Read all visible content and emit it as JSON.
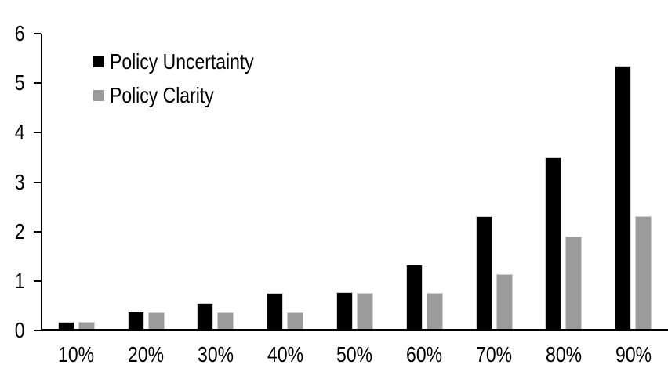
{
  "chart_data": {
    "type": "bar",
    "title": "",
    "categories": [
      "10%",
      "20%",
      "30%",
      "40%",
      "50%",
      "60%",
      "70%",
      "80%",
      "90%"
    ],
    "series": [
      {
        "name": "Policy Uncertainty",
        "color": "#000000",
        "values": [
          0.18,
          0.38,
          0.55,
          0.76,
          0.78,
          1.33,
          2.31,
          3.5,
          5.35
        ]
      },
      {
        "name": "Policy Clarity",
        "color": "#9b9b9b",
        "values": [
          0.18,
          0.37,
          0.37,
          0.37,
          0.76,
          0.76,
          1.14,
          1.9,
          2.31
        ]
      }
    ],
    "xlabel": "",
    "ylabel": "",
    "ylim": [
      0,
      6
    ],
    "yticks": [
      0,
      1,
      2,
      3,
      4,
      5,
      6
    ],
    "grid": false,
    "legend_position": "upper-left-inside"
  },
  "colors": {
    "background": "#ffffff",
    "axis": "#000000",
    "bar_border": "#d0d0d0",
    "text": "#000000"
  }
}
